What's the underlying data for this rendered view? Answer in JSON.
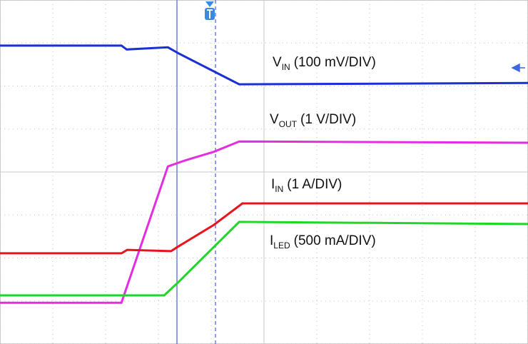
{
  "chart_data": {
    "type": "line",
    "xlim": [
      0,
      10
    ],
    "ylim": [
      0,
      8
    ],
    "xticks": [
      0,
      1,
      2,
      3,
      4,
      5,
      6,
      7,
      8,
      9,
      10
    ],
    "yticks": [
      0,
      1,
      2,
      3,
      4,
      5,
      6,
      7,
      8
    ],
    "grid": true,
    "series": [
      {
        "label": {
          "base": "V",
          "sub": "IN",
          "scale": "(100 mV/DIV)"
        },
        "color": "#1a2fd6",
        "x": [
          0,
          2.3,
          2.4,
          3.18,
          3.38,
          4.05,
          4.53,
          10
        ],
        "values": [
          6.94,
          6.94,
          6.85,
          6.9,
          6.76,
          6.34,
          6.04,
          6.07
        ]
      },
      {
        "label": {
          "base": "V",
          "sub": "OUT",
          "scale": "(1 V/DIV)"
        },
        "color": "#e22ee0",
        "x": [
          0,
          2.3,
          3.18,
          3.51,
          4.05,
          4.53,
          10
        ],
        "values": [
          0.96,
          0.96,
          4.13,
          4.27,
          4.47,
          4.71,
          4.68
        ]
      },
      {
        "label": {
          "base": "I",
          "sub": "IN",
          "scale": "(1 A/DIV)"
        },
        "color": "#e8141c",
        "x": [
          0,
          2.3,
          2.41,
          3.24,
          3.38,
          4.05,
          4.59,
          10
        ],
        "values": [
          2.11,
          2.11,
          2.19,
          2.16,
          2.27,
          2.77,
          3.27,
          3.27
        ]
      },
      {
        "label": {
          "base": "I",
          "sub": "LED",
          "scale": "(500 mA/DIV)"
        },
        "color": "#22d629",
        "x": [
          0,
          3.11,
          3.38,
          4.53,
          10
        ],
        "values": [
          1.13,
          1.13,
          1.44,
          2.84,
          2.79
        ]
      }
    ]
  }
}
